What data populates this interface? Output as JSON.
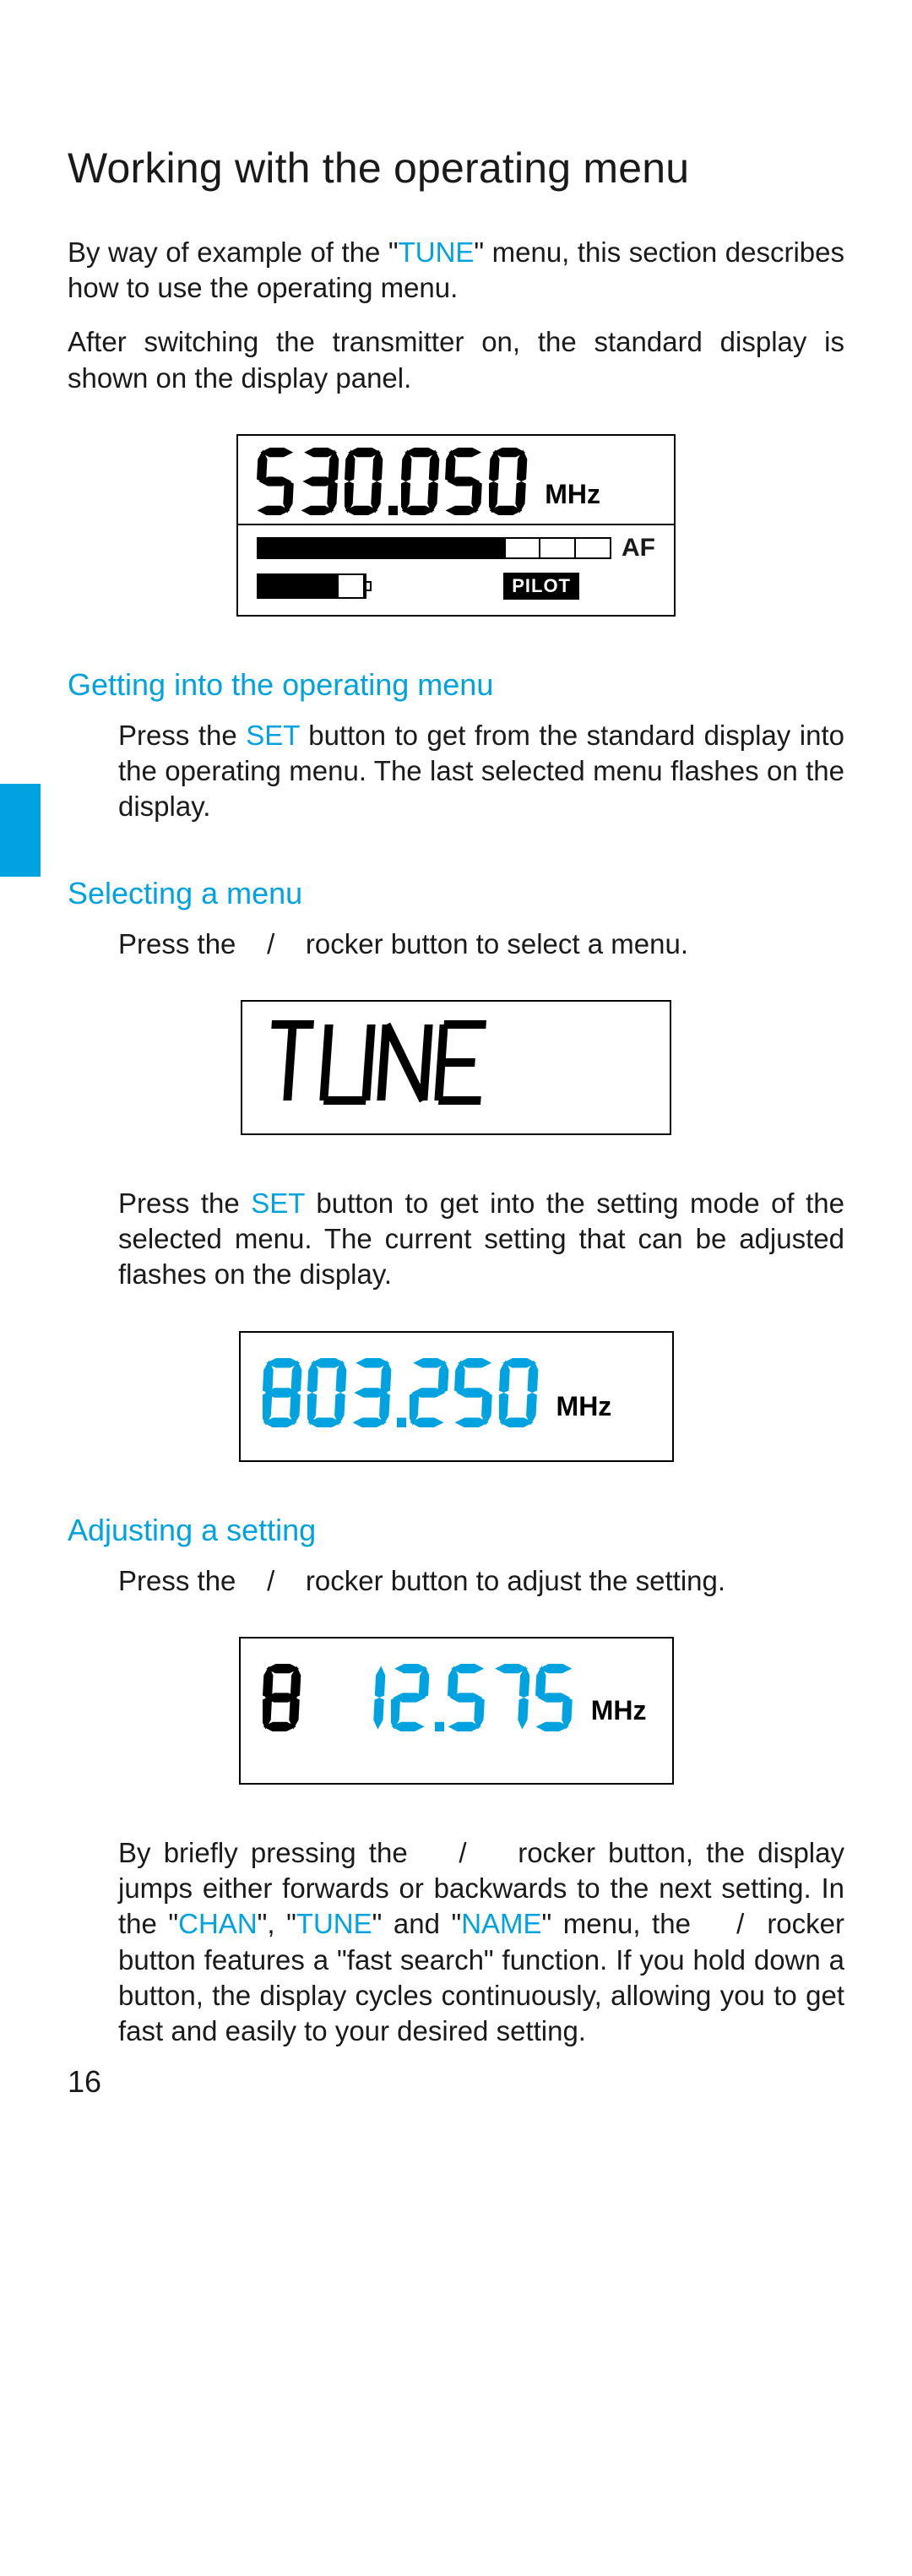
{
  "page": {
    "number": "16"
  },
  "title": "Working with the operating menu",
  "intro": {
    "p1_a": "By way of example of the \"",
    "p1_link": "TUNE",
    "p1_b": "\" menu, this section describes how to use the operating menu.",
    "p2": "After switching the transmitter on, the standard display is shown on the display panel."
  },
  "section1": {
    "heading": "Getting into the operating menu",
    "p_a": "Press the ",
    "p_link": "SET",
    "p_b": " button to get from the standard display into the operating menu. The last selected menu flashes on the display."
  },
  "section2": {
    "heading": "Selecting a menu",
    "p1": "Press the    /    rocker button to select a menu.",
    "p2_a": "Press the ",
    "p2_link": "SET",
    "p2_b": " button to get into the setting mode of the selected menu. The current setting that can be adjusted flashes on the display."
  },
  "section3": {
    "heading": "Adjusting a setting",
    "p1": "Press the    /    rocker button to adjust the setting.",
    "p2_a": "By briefly pressing the    /    rocker button, the display jumps either forwards or backwards to the next setting. In the \"",
    "p2_l1": "CHAN",
    "p2_b": "\", \"",
    "p2_l2": "TUNE",
    "p2_c": "\" and \"",
    "p2_l3": "NAME",
    "p2_d": "\" menu, the    /  rocker button features a \"fast search\" function. If you hold down a button, the display cycles continuously, allowing you to get fast and easily to your desired setting."
  },
  "display_main": {
    "digits": "530.050",
    "digit_color": "#000000",
    "bg_color": "#ffffff",
    "unit": "MHz",
    "af": {
      "label": "AF",
      "filled": 7,
      "total": 10
    },
    "battery": {
      "filled": 3,
      "total": 4
    },
    "pilot": "PILOT"
  },
  "display_tune": {
    "text": "TUNE",
    "text_color": "#000000"
  },
  "display_freq1": {
    "digits": "803.250",
    "digit_color": "#00a3e0",
    "unit": "MHz"
  },
  "display_freq2": {
    "digits": "8 12.575",
    "first_digit_color": "#000000",
    "rest_digit_color": "#00a3e0",
    "unit": "MHz"
  },
  "colors": {
    "accent": "#00a3e0",
    "text": "#1a1a1a",
    "black": "#000000"
  }
}
